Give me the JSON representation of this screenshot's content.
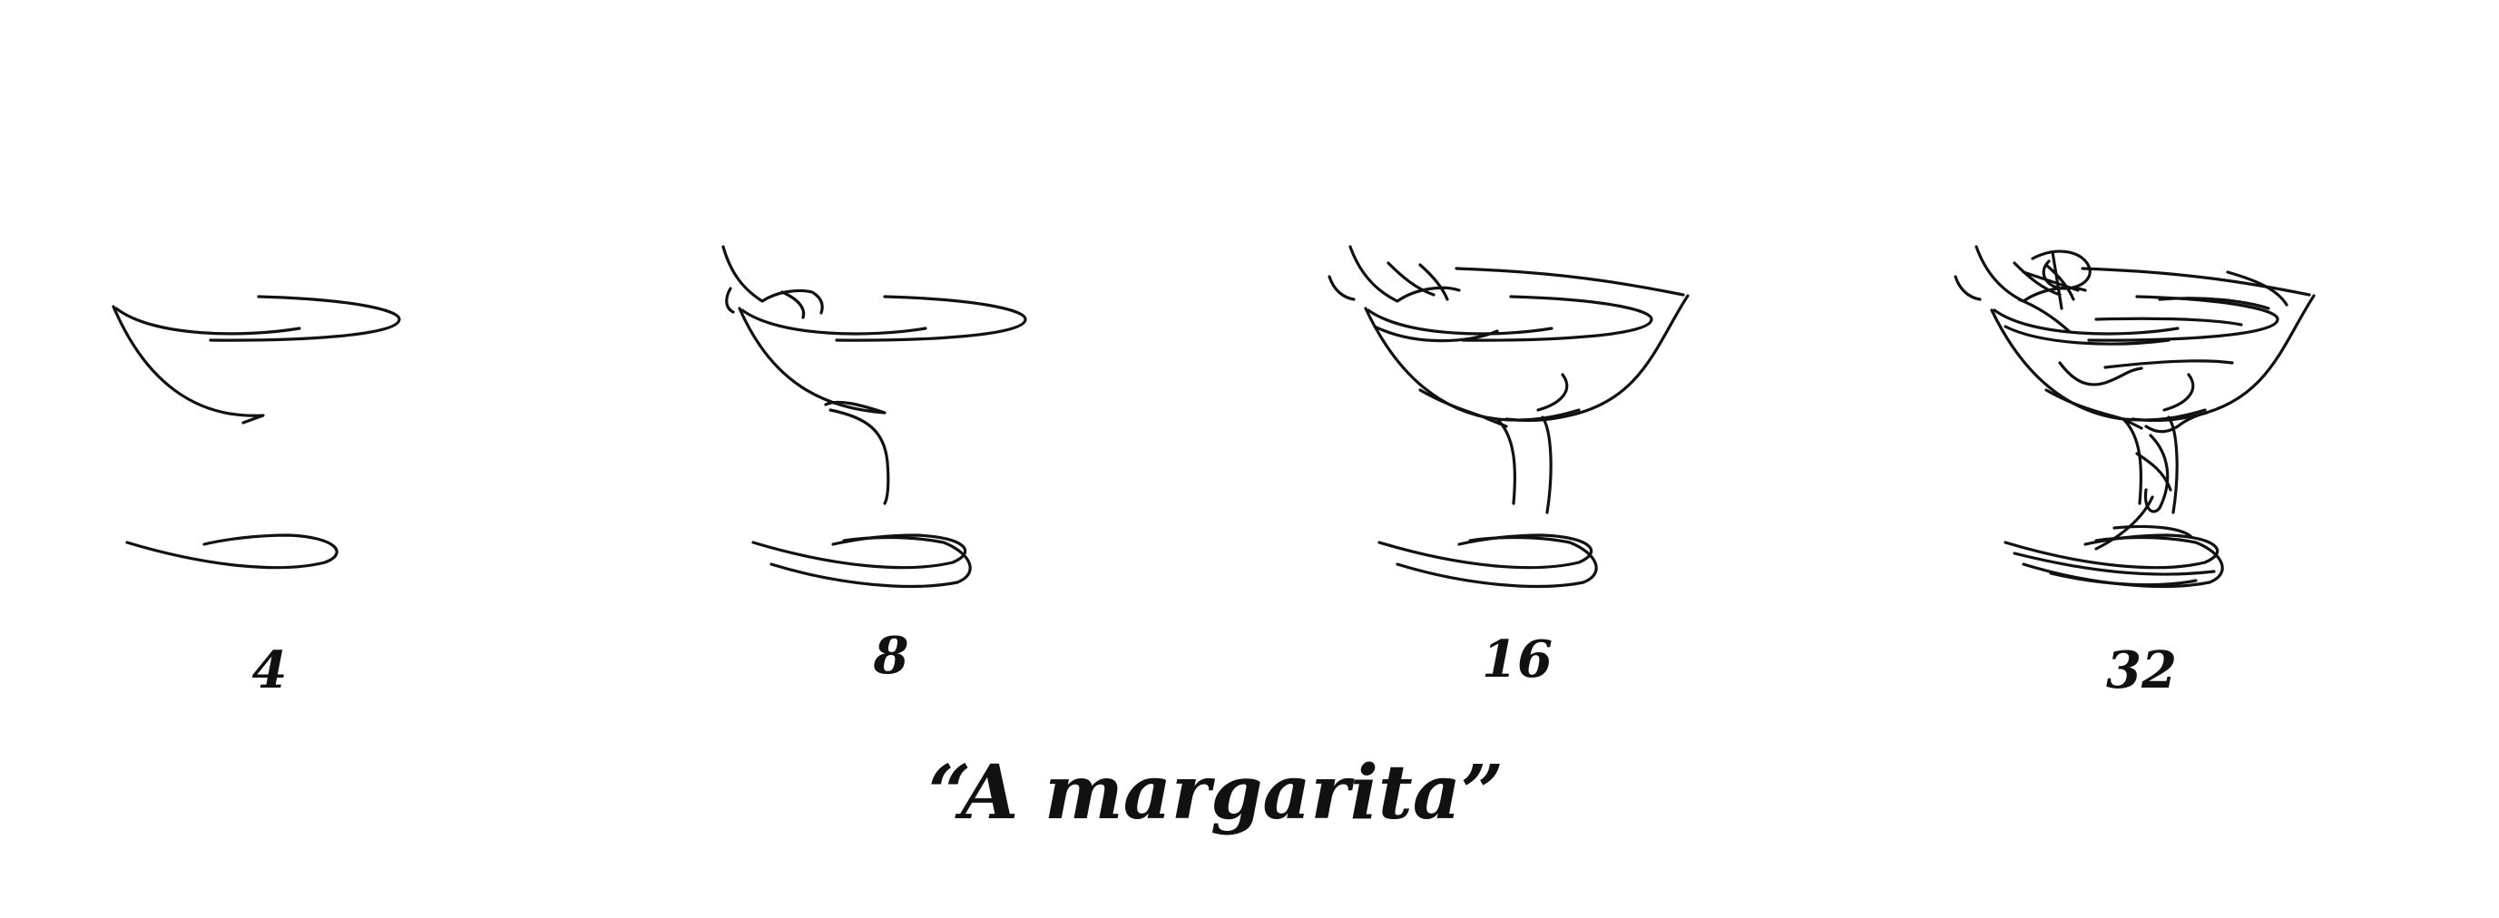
{
  "panels": [
    {
      "label": "4"
    },
    {
      "label": "8"
    },
    {
      "label": "16"
    },
    {
      "label": "32"
    }
  ],
  "caption": "“A margarita”",
  "colors": {
    "background": "#ffffff",
    "ink": "#111111"
  }
}
